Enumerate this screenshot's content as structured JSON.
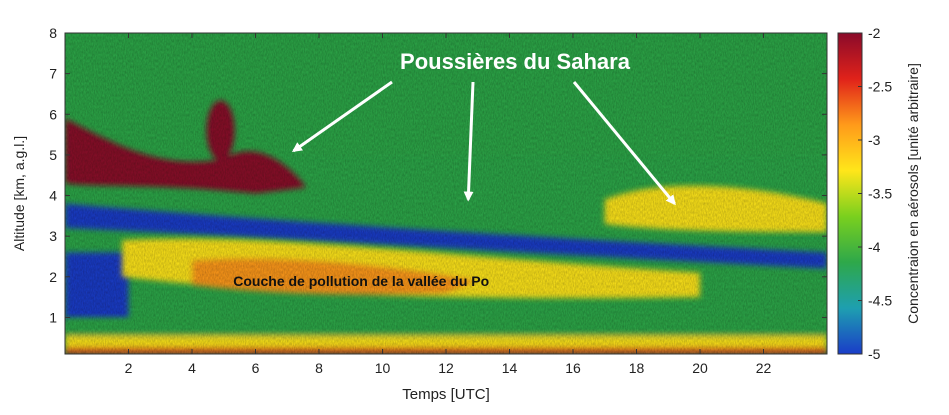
{
  "chart_data": {
    "type": "heatmap",
    "title": "",
    "xlabel": "Temps  [UTC]",
    "ylabel": "Altitude [km, a.g.l.]",
    "xlim": [
      0,
      24
    ],
    "ylim": [
      0.1,
      8
    ],
    "x_ticks": [
      2,
      4,
      6,
      8,
      10,
      12,
      14,
      16,
      18,
      20,
      22
    ],
    "y_ticks": [
      1,
      2,
      3,
      4,
      5,
      6,
      7,
      8
    ],
    "colorbar": {
      "label": "Concentraion en aérosols [unité arbitraire]",
      "range": [
        -5,
        -2
      ],
      "ticks": [
        -5,
        -4.5,
        -4,
        -3.5,
        -3,
        -2.5,
        -2
      ],
      "colors": [
        "#1a3cc8",
        "#1e9fb0",
        "#2ea84a",
        "#7ad01e",
        "#ffe61a",
        "#ff9a1a",
        "#e0221a",
        "#8a0a2a"
      ]
    },
    "annotations": [
      {
        "text": "Poussières du Sahara",
        "color": "#ffffff",
        "arrow_targets": [
          [
            7.2,
            5.1
          ],
          [
            12.7,
            3.9
          ],
          [
            19.2,
            3.8
          ]
        ]
      },
      {
        "text": "Couche de pollution de la vallée du Po",
        "color": "#111111",
        "at": [
          5.3,
          1.9
        ]
      }
    ],
    "features": [
      {
        "name": "surface aerosol layer",
        "x": [
          0,
          24
        ],
        "altitude_km": [
          0.1,
          1.0
        ],
        "level": -3.4
      },
      {
        "name": "Po valley pollution layer",
        "x": [
          1.8,
          20
        ],
        "altitude_km": [
          1.4,
          3.0
        ],
        "level": -3.1
      },
      {
        "name": "Saharan dust plume (morning)",
        "x": [
          0,
          7.6
        ],
        "altitude_km": [
          4.0,
          5.9
        ],
        "level": -2.05
      },
      {
        "name": "Saharan dust plume (afternoon)",
        "x": [
          17,
          24
        ],
        "altitude_km": [
          3.3,
          4.4
        ],
        "level": -3.0
      },
      {
        "name": "clean layer",
        "x": [
          0,
          24
        ],
        "altitude_km": [
          2.2,
          3.5
        ],
        "level": -4.6
      },
      {
        "name": "background free troposphere",
        "x": [
          0,
          24
        ],
        "altitude_km": [
          5,
          8
        ],
        "level": -4.3
      }
    ]
  }
}
